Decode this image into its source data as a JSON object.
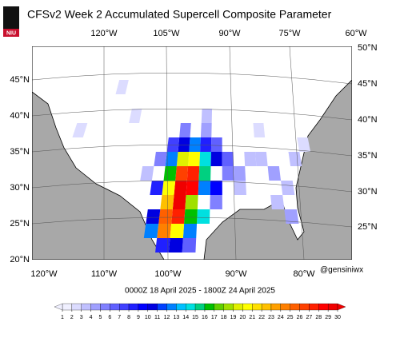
{
  "map": {
    "logo_text": "NIU",
    "title": "CFSv2 Week 2 Accumulated Supercell Composite Parameter",
    "top_labels": [
      "120°W",
      "105°W",
      "90°W",
      "75°W",
      "60°W"
    ],
    "right_labels": [
      "50°N",
      "45°N",
      "40°N",
      "35°N",
      "30°N",
      "25°N"
    ],
    "left_labels": [
      "45°N",
      "40°N",
      "35°N",
      "30°N",
      "25°N",
      "20°N"
    ],
    "bottom_labels": [
      "120°W",
      "110°W",
      "100°W",
      "90°W",
      "80°W"
    ],
    "credit": "@gensiniwx",
    "date_range": "0000Z 18  April  2025  - 1800Z 24  April  2025",
    "colorbar": {
      "ticks": [
        1,
        2,
        3,
        4,
        5,
        6,
        7,
        8,
        9,
        10,
        11,
        12,
        13,
        14,
        15,
        16,
        17,
        18,
        19,
        20,
        21,
        22,
        23,
        24,
        25,
        26,
        27,
        28,
        29,
        30
      ],
      "colors": [
        "#f0f0ff",
        "#dcdcff",
        "#c0c0ff",
        "#a0a0ff",
        "#8080ff",
        "#6060ff",
        "#4040ff",
        "#2020ff",
        "#0000ff",
        "#0000e0",
        "#0040ff",
        "#0080ff",
        "#00c0ff",
        "#00e0e0",
        "#00d080",
        "#00c000",
        "#60d000",
        "#a0e000",
        "#e0f000",
        "#ffff00",
        "#ffe000",
        "#ffc000",
        "#ffa000",
        "#ff8000",
        "#ff6000",
        "#ff4000",
        "#ff2000",
        "#ff0000",
        "#f00000"
      ]
    },
    "cells": {
      "lon": [
        -99,
        -99,
        -97,
        -97,
        -99,
        -99,
        -101,
        -101,
        -97,
        -99,
        -95,
        -101,
        -101,
        -97,
        -95,
        -95,
        -93,
        -93,
        -97,
        -99,
        -101,
        -101,
        -103,
        -103,
        -103,
        -95,
        -97,
        -97,
        -99,
        -95,
        -93,
        -101,
        -103,
        -99,
        -95,
        -97,
        -99,
        -101,
        -91,
        -91,
        -89,
        -89,
        -87,
        -85,
        -83,
        -81,
        -79,
        -77,
        -81,
        -83,
        -95,
        -105,
        -109,
        -113,
        -119,
        -85,
        -93
      ],
      "lat": [
        28,
        30,
        30,
        32,
        32,
        26,
        26,
        24,
        34,
        34,
        34,
        30,
        28,
        28,
        30,
        32,
        30,
        34,
        36,
        36,
        34,
        32,
        30,
        26,
        24,
        26,
        26,
        24,
        24,
        36,
        36,
        36,
        34,
        38,
        38,
        22,
        22,
        22,
        34,
        32,
        32,
        30,
        34,
        34,
        32,
        30,
        34,
        36,
        26,
        28,
        40,
        32,
        40,
        44,
        38,
        38,
        28
      ],
      "values": [
        29,
        30,
        28,
        27,
        26,
        27,
        25,
        24,
        20,
        19,
        14,
        20,
        22,
        18,
        12,
        15,
        9,
        10,
        12,
        10,
        12,
        16,
        8,
        10,
        12,
        14,
        16,
        12,
        20,
        8,
        6,
        7,
        5,
        5,
        4,
        6,
        10,
        8,
        6,
        5,
        4,
        3,
        3,
        3,
        4,
        3,
        3,
        2,
        4,
        3,
        3,
        3,
        2,
        2,
        2,
        2,
        5
      ]
    }
  }
}
